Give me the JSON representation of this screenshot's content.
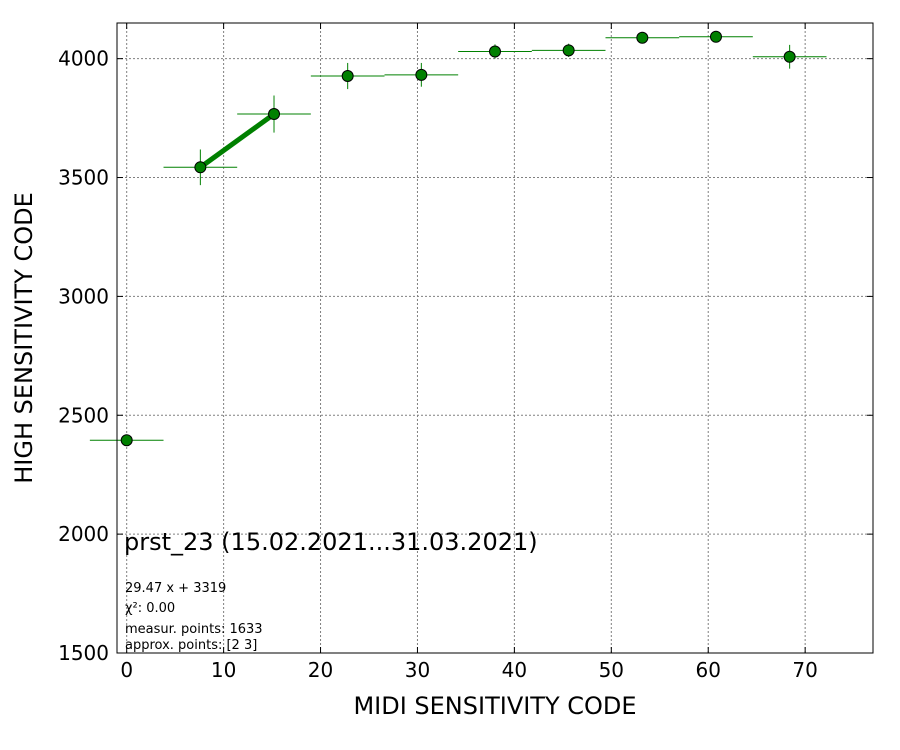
{
  "chart_data": {
    "type": "scatter",
    "title": "prst_23 (15.02.2021...31.03.2021)",
    "xlabel": "MIDI SENSITIVITY CODE",
    "ylabel": "HIGH SENSITIVITY CODE",
    "xlim": [
      -1,
      77
    ],
    "ylim": [
      1500,
      4150
    ],
    "x_ticks": [
      0,
      10,
      20,
      30,
      40,
      50,
      60,
      70
    ],
    "y_ticks": [
      1500,
      2000,
      2500,
      3000,
      3500,
      4000
    ],
    "grid": true,
    "colors": {
      "marker": "#008000",
      "marker_edge": "#000000",
      "fit_line": "#008000",
      "grid": "#808080"
    },
    "series": [
      {
        "points": [
          {
            "x": 0.0,
            "y": 2395,
            "xerr": 3.8,
            "yerr": 0
          },
          {
            "x": 7.6,
            "y": 3543,
            "xerr": 3.8,
            "yerr": 75
          },
          {
            "x": 15.2,
            "y": 3767,
            "xerr": 3.8,
            "yerr": 78
          },
          {
            "x": 22.8,
            "y": 3927,
            "xerr": 3.8,
            "yerr": 55
          },
          {
            "x": 30.4,
            "y": 3932,
            "xerr": 3.8,
            "yerr": 50
          },
          {
            "x": 38.0,
            "y": 4030,
            "xerr": 3.8,
            "yerr": 30
          },
          {
            "x": 45.6,
            "y": 4035,
            "xerr": 3.8,
            "yerr": 28
          },
          {
            "x": 53.2,
            "y": 4088,
            "xerr": 3.8,
            "yerr": 10
          },
          {
            "x": 60.8,
            "y": 4092,
            "xerr": 3.8,
            "yerr": 10
          },
          {
            "x": 68.4,
            "y": 4008,
            "xerr": 3.8,
            "yerr": 50
          }
        ]
      }
    ],
    "fit_line": {
      "x": [
        7.6,
        15.2
      ],
      "y": [
        3543,
        3767
      ]
    },
    "annotations": [
      "29.47 x + 3319",
      "χ²: 0.00",
      "measur. points: 1633",
      "approx. points: [2 3]"
    ]
  }
}
